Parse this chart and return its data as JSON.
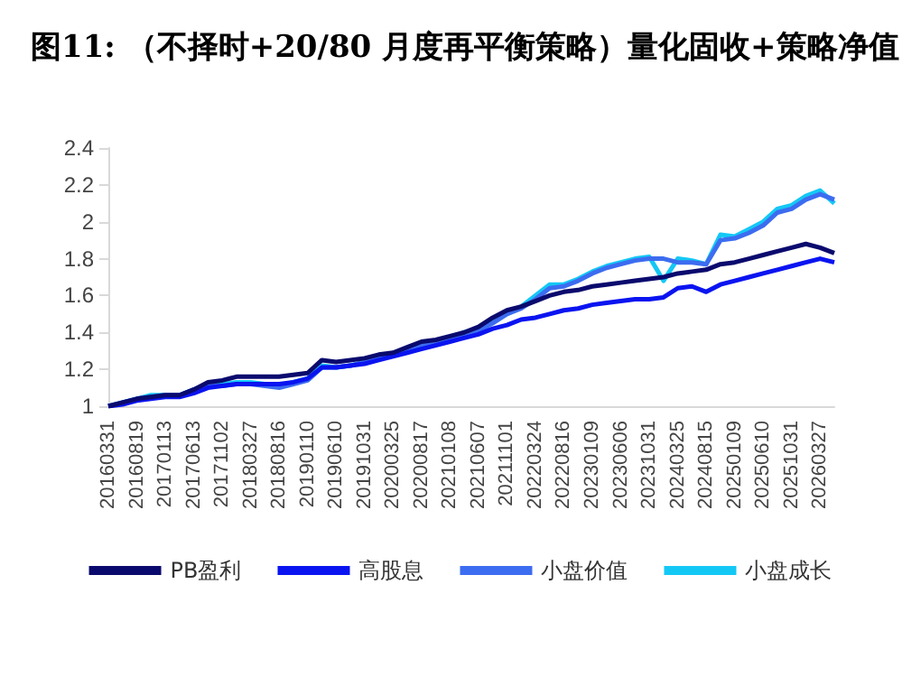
{
  "chart_data": {
    "type": "line",
    "title": "图11: （不择时+20/80 月度再平衡策略）量化固收+策略净值",
    "categories": [
      "20160331",
      null,
      "20160819",
      null,
      "20170113",
      null,
      "20170613",
      null,
      "20171102",
      null,
      "20180327",
      null,
      "20180816",
      null,
      "20190110",
      null,
      "20190610",
      null,
      "20191031",
      null,
      "20200325",
      null,
      "20200817",
      null,
      "20210108",
      null,
      "20210607",
      null,
      "20211101",
      null,
      "20220324",
      null,
      "20220816",
      null,
      "20230109",
      null,
      "20230606",
      null,
      "20231031",
      null,
      "20240325",
      null,
      "20240815",
      null,
      "20250109",
      null,
      "20250610",
      null,
      "20251031",
      null,
      "20260327",
      null
    ],
    "series": [
      {
        "name": "PB盈利",
        "color": "#0a0a6e",
        "values": [
          1.0,
          1.02,
          1.04,
          1.05,
          1.06,
          1.06,
          1.09,
          1.13,
          1.14,
          1.16,
          1.16,
          1.16,
          1.16,
          1.17,
          1.18,
          1.25,
          1.24,
          1.25,
          1.26,
          1.28,
          1.29,
          1.32,
          1.35,
          1.36,
          1.38,
          1.4,
          1.43,
          1.48,
          1.52,
          1.54,
          1.57,
          1.6,
          1.62,
          1.63,
          1.65,
          1.66,
          1.67,
          1.68,
          1.69,
          1.7,
          1.72,
          1.73,
          1.74,
          1.77,
          1.78,
          1.8,
          1.82,
          1.84,
          1.86,
          1.88,
          1.86,
          1.83
        ]
      },
      {
        "name": "高股息",
        "color": "#0a14f0",
        "values": [
          1.0,
          1.01,
          1.03,
          1.04,
          1.05,
          1.05,
          1.07,
          1.1,
          1.11,
          1.12,
          1.12,
          1.12,
          1.12,
          1.13,
          1.15,
          1.21,
          1.21,
          1.22,
          1.23,
          1.25,
          1.27,
          1.29,
          1.31,
          1.33,
          1.35,
          1.37,
          1.39,
          1.42,
          1.44,
          1.47,
          1.48,
          1.5,
          1.52,
          1.53,
          1.55,
          1.56,
          1.57,
          1.58,
          1.58,
          1.59,
          1.64,
          1.65,
          1.62,
          1.66,
          1.68,
          1.7,
          1.72,
          1.74,
          1.76,
          1.78,
          1.8,
          1.78
        ]
      },
      {
        "name": "小盘价值",
        "color": "#3c6cf0",
        "values": [
          1.0,
          1.02,
          1.04,
          1.05,
          1.06,
          1.06,
          1.09,
          1.11,
          1.11,
          1.12,
          1.12,
          1.11,
          1.1,
          1.12,
          1.14,
          1.21,
          1.21,
          1.22,
          1.24,
          1.26,
          1.28,
          1.3,
          1.33,
          1.34,
          1.37,
          1.39,
          1.41,
          1.45,
          1.5,
          1.53,
          1.58,
          1.64,
          1.65,
          1.68,
          1.72,
          1.75,
          1.77,
          1.79,
          1.8,
          1.8,
          1.78,
          1.78,
          1.77,
          1.9,
          1.91,
          1.94,
          1.98,
          2.05,
          2.07,
          2.12,
          2.15,
          2.12
        ]
      },
      {
        "name": "小盘成长",
        "color": "#14c8f5",
        "values": [
          1.0,
          1.02,
          1.04,
          1.06,
          1.06,
          1.06,
          1.09,
          1.12,
          1.12,
          1.13,
          1.13,
          1.12,
          1.11,
          1.13,
          1.15,
          1.22,
          1.21,
          1.22,
          1.24,
          1.26,
          1.28,
          1.3,
          1.33,
          1.35,
          1.37,
          1.4,
          1.42,
          1.46,
          1.5,
          1.54,
          1.6,
          1.66,
          1.66,
          1.69,
          1.73,
          1.76,
          1.78,
          1.8,
          1.81,
          1.68,
          1.8,
          1.79,
          1.77,
          1.93,
          1.92,
          1.96,
          2.0,
          2.07,
          2.09,
          2.14,
          2.17,
          2.1
        ]
      }
    ],
    "ylim": [
      1,
      2.4
    ],
    "yticks": [
      1,
      1.2,
      1.4,
      1.6,
      1.8,
      2,
      2.2,
      2.4
    ],
    "grid": false,
    "legend": "bottom",
    "marker": "none",
    "line_style": "solid"
  }
}
